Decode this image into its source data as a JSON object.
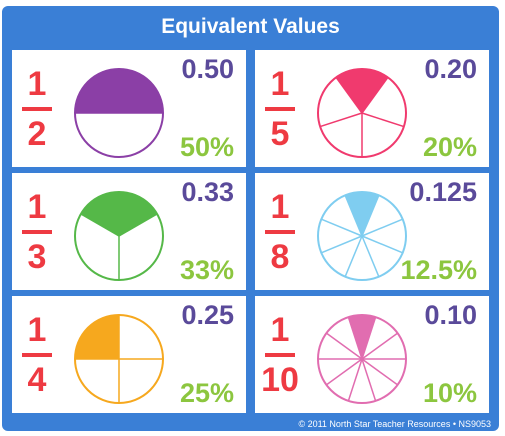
{
  "title": "Equivalent Values",
  "footer": "© 2011 North Star Teacher Resources • NS9053",
  "cards": [
    {
      "numerator": "1",
      "denominator": "2",
      "decimal": "0.50",
      "percent": "50%",
      "slices": 2,
      "shaded": 1,
      "color": "#8b3fa6"
    },
    {
      "numerator": "1",
      "denominator": "5",
      "decimal": "0.20",
      "percent": "20%",
      "slices": 5,
      "shaded": 1,
      "color": "#f03a6e"
    },
    {
      "numerator": "1",
      "denominator": "3",
      "decimal": "0.33",
      "percent": "33%",
      "slices": 3,
      "shaded": 1,
      "color": "#55b848"
    },
    {
      "numerator": "1",
      "denominator": "8",
      "decimal": "0.125",
      "percent": "12.5%",
      "slices": 8,
      "shaded": 1,
      "color": "#7fcdf0"
    },
    {
      "numerator": "1",
      "denominator": "4",
      "decimal": "0.25",
      "percent": "25%",
      "slices": 4,
      "shaded": 1,
      "color": "#f6a81e"
    },
    {
      "numerator": "1",
      "denominator": "10",
      "decimal": "0.10",
      "percent": "10%",
      "slices": 10,
      "shaded": 1,
      "color": "#e16db0"
    }
  ]
}
